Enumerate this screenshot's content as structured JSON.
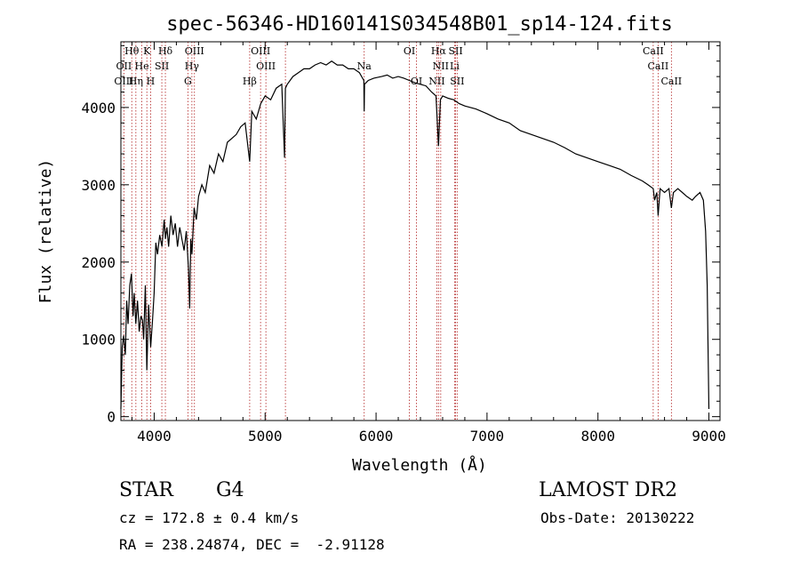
{
  "chart_data": {
    "type": "line",
    "title": "spec-56346-HD160141S034548B01_sp14-124.fits",
    "xlabel": "Wavelength (Å)",
    "ylabel": "Flux (relative)",
    "xlim": [
      3700,
      9100
    ],
    "ylim": [
      -50,
      4850
    ],
    "grid": false,
    "x_ticks": [
      4000,
      5000,
      6000,
      7000,
      8000,
      9000
    ],
    "y_ticks": [
      0,
      1000,
      2000,
      3000,
      4000
    ],
    "x_tick_labels": [
      "4000",
      "5000",
      "6000",
      "7000",
      "8000",
      "9000"
    ],
    "y_tick_labels": [
      "0",
      "1000",
      "2000",
      "3000",
      "4000"
    ],
    "series": [
      {
        "x": [
          3700,
          3712,
          3725,
          3740,
          3752,
          3765,
          3780,
          3795,
          3810,
          3820,
          3835,
          3850,
          3865,
          3880,
          3895,
          3905,
          3920,
          3934,
          3950,
          3968,
          3985,
          4000,
          4015,
          4030,
          4050,
          4070,
          4090,
          4101,
          4115,
          4130,
          4150,
          4170,
          4190,
          4210,
          4230,
          4250,
          4270,
          4290,
          4310,
          4320,
          4330,
          4340,
          4360,
          4380,
          4400,
          4430,
          4460,
          4500,
          4540,
          4580,
          4620,
          4660,
          4700,
          4740,
          4780,
          4820,
          4861,
          4880,
          4920,
          4960,
          5000,
          5050,
          5100,
          5150,
          5175,
          5183,
          5200,
          5250,
          5300,
          5350,
          5400,
          5450,
          5500,
          5550,
          5600,
          5650,
          5700,
          5750,
          5800,
          5850,
          5890,
          5893,
          5896,
          5930,
          5980,
          6050,
          6100,
          6150,
          6200,
          6250,
          6300,
          6350,
          6400,
          6450,
          6500,
          6540,
          6563,
          6580,
          6600,
          6650,
          6700,
          6750,
          6800,
          6900,
          7000,
          7100,
          7200,
          7300,
          7400,
          7500,
          7600,
          7700,
          7800,
          7900,
          8000,
          8100,
          8200,
          8300,
          8400,
          8450,
          8498,
          8510,
          8530,
          8542,
          8560,
          8600,
          8640,
          8662,
          8680,
          8720,
          8760,
          8800,
          8850,
          8880,
          8920,
          8950,
          8970,
          8985,
          9000
        ],
        "y": [
          100,
          900,
          1050,
          800,
          1500,
          1200,
          1700,
          1850,
          1300,
          1600,
          1200,
          1500,
          1100,
          1300,
          1250,
          1000,
          1700,
          600,
          1450,
          900,
          1250,
          1600,
          2250,
          2100,
          2350,
          2200,
          2550,
          2300,
          2450,
          2200,
          2600,
          2350,
          2500,
          2200,
          2450,
          2300,
          2150,
          2400,
          1900,
          1400,
          2300,
          2100,
          2700,
          2550,
          2850,
          3000,
          2900,
          3250,
          3150,
          3400,
          3300,
          3550,
          3600,
          3650,
          3750,
          3800,
          3300,
          3950,
          3850,
          4050,
          4150,
          4100,
          4250,
          4300,
          3350,
          4250,
          4300,
          4400,
          4450,
          4500,
          4500,
          4550,
          4580,
          4550,
          4600,
          4550,
          4550,
          4500,
          4500,
          4450,
          4350,
          3950,
          4300,
          4350,
          4380,
          4400,
          4420,
          4380,
          4400,
          4380,
          4350,
          4320,
          4300,
          4280,
          4200,
          4150,
          3500,
          4100,
          4150,
          4120,
          4100,
          4050,
          4020,
          3980,
          3920,
          3850,
          3800,
          3700,
          3650,
          3600,
          3550,
          3480,
          3400,
          3350,
          3300,
          3250,
          3200,
          3120,
          3050,
          3000,
          2950,
          2800,
          2900,
          2600,
          2950,
          2900,
          2950,
          2700,
          2900,
          2950,
          2900,
          2850,
          2800,
          2850,
          2900,
          2800,
          2400,
          1700,
          100
        ]
      }
    ],
    "annotations": [
      {
        "label": "Hθ",
        "x": 3798,
        "row": 1
      },
      {
        "label": "K",
        "x": 3934,
        "row": 1
      },
      {
        "label": "Hδ",
        "x": 4101,
        "row": 1
      },
      {
        "label": "OIII",
        "x": 4363,
        "row": 1
      },
      {
        "label": "OIII",
        "x": 4959,
        "row": 1
      },
      {
        "label": "OI",
        "x": 6300,
        "row": 1
      },
      {
        "label": "Hα",
        "x": 6563,
        "row": 1
      },
      {
        "label": "SII",
        "x": 6717,
        "row": 1
      },
      {
        "label": "CaII",
        "x": 8498,
        "row": 1
      },
      {
        "label": "OII",
        "x": 3727,
        "row": 2
      },
      {
        "label": "He",
        "x": 3889,
        "row": 2
      },
      {
        "label": "SII",
        "x": 4069,
        "row": 2
      },
      {
        "label": "Hγ",
        "x": 4340,
        "row": 2
      },
      {
        "label": "OIII",
        "x": 5007,
        "row": 2
      },
      {
        "label": "Na",
        "x": 5893,
        "row": 2
      },
      {
        "label": "NII",
        "x": 6583,
        "row": 2
      },
      {
        "label": "Li",
        "x": 6708,
        "row": 2
      },
      {
        "label": "CaII",
        "x": 8542,
        "row": 2
      },
      {
        "label": "OIII",
        "x": 3727,
        "row": 3
      },
      {
        "label": "Hη",
        "x": 3835,
        "row": 3
      },
      {
        "label": "H",
        "x": 3968,
        "row": 3
      },
      {
        "label": "G",
        "x": 4304,
        "row": 3
      },
      {
        "label": "Hβ",
        "x": 4861,
        "row": 3
      },
      {
        "label": "OI",
        "x": 6364,
        "row": 3
      },
      {
        "label": "NII",
        "x": 6548,
        "row": 3
      },
      {
        "label": "SII",
        "x": 6731,
        "row": 3
      },
      {
        "label": "CaII",
        "x": 8662,
        "row": 3
      }
    ],
    "line_positions": [
      3727,
      3798,
      3835,
      3889,
      3934,
      3968,
      4069,
      4101,
      4304,
      4340,
      4363,
      4861,
      4959,
      5007,
      5183,
      5893,
      6300,
      6364,
      6548,
      6563,
      6583,
      6708,
      6717,
      6731,
      8498,
      8542,
      8662
    ],
    "line_color": "#b22222"
  },
  "info": {
    "object_class": "STAR",
    "subclass": "G4",
    "survey": "LAMOST DR2",
    "cz": "cz = 172.8 ± 0.4 km/s",
    "obs_date": "Obs-Date: 20130222",
    "coords": "RA = 238.24874, DEC =  -2.91128"
  }
}
